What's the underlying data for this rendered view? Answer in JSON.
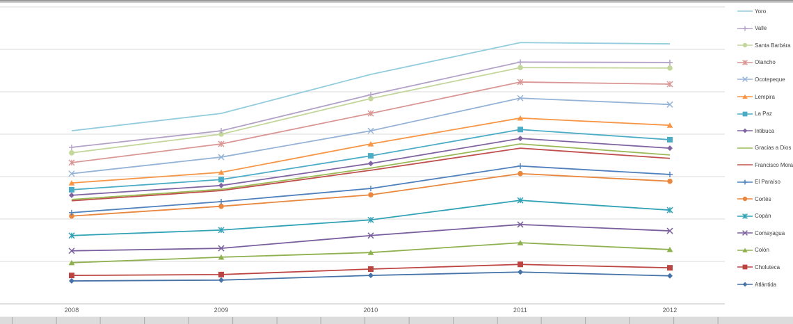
{
  "chart_data": {
    "type": "line",
    "title": "",
    "xlabel": "",
    "ylabel": "",
    "categories": [
      "2008",
      "2009",
      "2010",
      "2011",
      "2012"
    ],
    "y_axis": {
      "tick_labels_visible": false,
      "note": "y-axis tick labels are cropped out of frame; values below are measured in gridline intervals above the x-axis",
      "gridlines": true,
      "gridline_interval": 1,
      "range_units": [
        0,
        7
      ]
    },
    "legend_position": "right",
    "series": [
      {
        "name": "Yoro",
        "color": "#93CDDD",
        "marker": "none",
        "values": [
          4.08,
          4.49,
          5.41,
          6.16,
          6.13
        ]
      },
      {
        "name": "Valle",
        "color": "#B3A2C7",
        "marker": "plus",
        "values": [
          3.69,
          4.08,
          4.93,
          5.7,
          5.69
        ]
      },
      {
        "name": "Santa Barbára",
        "color": "#C3D69B",
        "marker": "circle",
        "values": [
          3.56,
          4.0,
          4.84,
          5.57,
          5.56
        ]
      },
      {
        "name": "Olancho",
        "color": "#D99694",
        "marker": "asterisk",
        "values": [
          3.33,
          3.77,
          4.49,
          5.23,
          5.18
        ]
      },
      {
        "name": "Ocotepeque",
        "color": "#95B3D7",
        "marker": "x",
        "values": [
          3.07,
          3.46,
          4.08,
          4.85,
          4.7
        ]
      },
      {
        "name": "Lempira",
        "color": "#F79646",
        "marker": "triangle",
        "values": [
          2.85,
          3.1,
          3.77,
          4.38,
          4.21
        ]
      },
      {
        "name": "La Paz",
        "color": "#4BACC6",
        "marker": "square",
        "values": [
          2.69,
          2.93,
          3.49,
          4.11,
          3.87
        ]
      },
      {
        "name": "Intibuca",
        "color": "#8064A2",
        "marker": "diamond",
        "values": [
          2.56,
          2.79,
          3.31,
          3.9,
          3.67
        ]
      },
      {
        "name": "Gracias a Dios",
        "color": "#9BBB59",
        "marker": "none",
        "values": [
          2.46,
          2.7,
          3.2,
          3.77,
          3.51
        ]
      },
      {
        "name": "Francisco Morazán",
        "color": "#C0504D",
        "marker": "none",
        "values": [
          2.43,
          2.67,
          3.15,
          3.67,
          3.43
        ]
      },
      {
        "name": "El Paraíso",
        "color": "#4F81BD",
        "marker": "plus",
        "values": [
          2.15,
          2.41,
          2.72,
          3.25,
          3.05
        ]
      },
      {
        "name": "Cortés",
        "color": "#E8873D",
        "marker": "circle",
        "values": [
          2.07,
          2.3,
          2.57,
          3.07,
          2.89
        ]
      },
      {
        "name": "Copán",
        "color": "#31A2B5",
        "marker": "asterisk",
        "values": [
          1.61,
          1.74,
          1.98,
          2.44,
          2.21
        ]
      },
      {
        "name": "Comayagua",
        "color": "#7A5F9E",
        "marker": "x",
        "values": [
          1.25,
          1.31,
          1.61,
          1.87,
          1.72
        ]
      },
      {
        "name": "Colón",
        "color": "#8FB04E",
        "marker": "triangle",
        "values": [
          0.97,
          1.1,
          1.21,
          1.44,
          1.28
        ]
      },
      {
        "name": "Choluteca",
        "color": "#BC4542",
        "marker": "square",
        "values": [
          0.67,
          0.69,
          0.82,
          0.93,
          0.85
        ]
      },
      {
        "name": "Atlántida",
        "color": "#4572A7",
        "marker": "diamond",
        "values": [
          0.54,
          0.56,
          0.67,
          0.75,
          0.66
        ]
      }
    ],
    "colors": {
      "gridline": "#D9D9D9",
      "x_axis_line": "#BFBFBF",
      "axis_label_text": "#595959",
      "legend_text": "#3F3F3F"
    }
  }
}
